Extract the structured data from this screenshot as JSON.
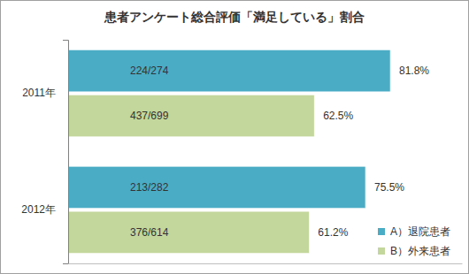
{
  "chart_data": {
    "type": "bar",
    "title": "患者アンケート総合評価「満足している」割合",
    "orientation": "horizontal",
    "categories": [
      "2011年",
      "2012年"
    ],
    "series": [
      {
        "name": "A）退院患者",
        "color": "#4bacc6",
        "values": [
          81.8,
          75.5
        ],
        "value_labels": [
          "81.8%",
          "75.5%"
        ],
        "annotations": [
          "224/274",
          "213/282"
        ]
      },
      {
        "name": "B）外来患者",
        "color": "#c3d69b",
        "values": [
          62.5,
          61.2
        ],
        "value_labels": [
          "62.5%",
          "61.2%"
        ],
        "annotations": [
          "437/699",
          "376/614"
        ]
      }
    ],
    "xlim": [
      0,
      100
    ],
    "tick_labels": "y",
    "data_labels": true,
    "legend": "bottom-right",
    "grid": false
  }
}
